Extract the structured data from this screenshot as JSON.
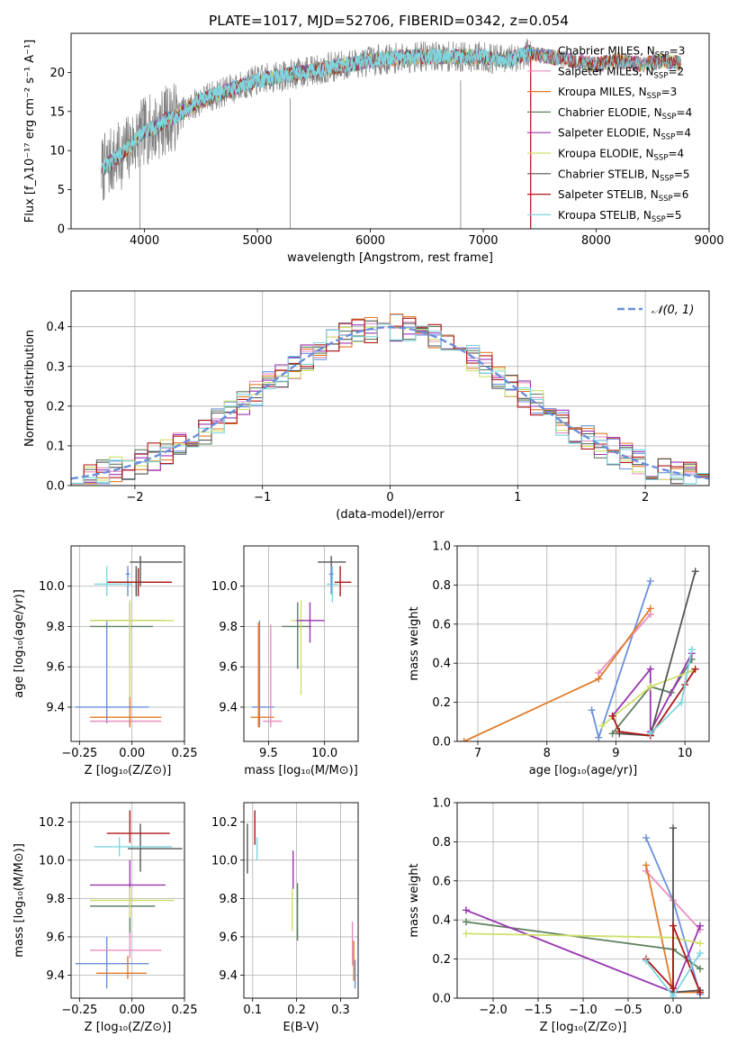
{
  "colors": {
    "chabrier_miles": "#6a8fdc",
    "salpeter_miles": "#e88fc0",
    "kroupa_miles": "#e07b2a",
    "chabrier_elodie": "#5f7f5f",
    "salpeter_elodie": "#9a35b0",
    "kroupa_elodie": "#cfe06a",
    "chabrier_stelib": "#555555",
    "salpeter_stelib": "#b01818",
    "kroupa_stelib": "#7fd6de",
    "spectrum": "#808080"
  },
  "chart_data": [
    {
      "id": "spectrum",
      "type": "line",
      "title": "PLATE=1017, MJD=52706, FIBERID=0342, z=0.054",
      "xlabel": "wavelength [Angstrom, rest frame]",
      "ylabel": "Flux [f_λ10⁻¹⁷ erg cm⁻² s⁻¹ A⁻¹]",
      "xlim": [
        3350,
        9000
      ],
      "ylim": [
        0,
        25
      ],
      "xticks": [
        "4000",
        "5000",
        "6000",
        "7000",
        "8000",
        "9000"
      ],
      "yticks": [
        "0",
        "5",
        "10",
        "15",
        "20"
      ],
      "legend_position": "right",
      "legend": [
        {
          "label": "Chabrier MILES, N",
          "sub": "SSP",
          "suffix": "=3",
          "color": "chabrier_miles"
        },
        {
          "label": "Salpeter MILES, N",
          "sub": "SSP",
          "suffix": "=2",
          "color": "salpeter_miles"
        },
        {
          "label": "Kroupa MILES, N",
          "sub": "SSP",
          "suffix": "=3",
          "color": "kroupa_miles"
        },
        {
          "label": "Chabrier ELODIE, N",
          "sub": "SSP",
          "suffix": "=4",
          "color": "chabrier_elodie"
        },
        {
          "label": "Salpeter ELODIE, N",
          "sub": "SSP",
          "suffix": "=4",
          "color": "salpeter_elodie"
        },
        {
          "label": "Kroupa ELODIE, N",
          "sub": "SSP",
          "suffix": "=4",
          "color": "kroupa_elodie"
        },
        {
          "label": "Chabrier STELIB, N",
          "sub": "SSP",
          "suffix": "=5",
          "color": "chabrier_stelib"
        },
        {
          "label": "Salpeter STELIB, N",
          "sub": "SSP",
          "suffix": "=6",
          "color": "salpeter_stelib"
        },
        {
          "label": "Kroupa STELIB, N",
          "sub": "SSP",
          "suffix": "=5",
          "color": "kroupa_stelib"
        }
      ],
      "continuum": {
        "x": [
          3620,
          3700,
          3800,
          3900,
          4000,
          4100,
          4200,
          4300,
          4400,
          4500,
          4600,
          4700,
          4800,
          4900,
          5000,
          5200,
          5400,
          5600,
          5800,
          6000,
          6200,
          6400,
          6600,
          6800,
          7000,
          7200,
          7400,
          7600,
          7800,
          8000,
          8200,
          8400,
          8600,
          8800
        ],
        "y": [
          7.5,
          8.5,
          9.5,
          11.0,
          12.5,
          13.0,
          14.0,
          14.5,
          15.5,
          16.5,
          17.0,
          17.5,
          18.0,
          18.5,
          19.0,
          19.5,
          20.0,
          20.5,
          21.0,
          21.5,
          21.8,
          22.0,
          22.0,
          22.0,
          22.0,
          21.5,
          22.5,
          22.0,
          21.5,
          21.0,
          21.5,
          21.0,
          21.5,
          21.0
        ]
      },
      "observed_end_wavelength": 7420,
      "model_end_wavelength": 8750,
      "flux_drop_wavelengths": [
        3960,
        5290,
        6800,
        7420
      ]
    },
    {
      "id": "residuals",
      "type": "histogram",
      "xlabel": "(data-model)/error",
      "ylabel": "Normed distribution",
      "xlim": [
        -2.5,
        2.5
      ],
      "ylim": [
        0,
        0.49
      ],
      "xticks": [
        "−2",
        "−1",
        "0",
        "1",
        "2"
      ],
      "yticks": [
        "0.0",
        "0.1",
        "0.2",
        "0.3",
        "0.4"
      ],
      "bin_width": 0.1,
      "legend_label": "𝒩(0, 1)",
      "legend_position": "top-right",
      "reference_curve": "standard normal pdf",
      "series_colors": [
        "chabrier_miles",
        "salpeter_miles",
        "kroupa_miles",
        "chabrier_elodie",
        "salpeter_elodie",
        "kroupa_elodie",
        "chabrier_stelib",
        "salpeter_stelib",
        "kroupa_stelib"
      ],
      "grid": true
    },
    {
      "id": "age_vs_Z",
      "type": "errorbar",
      "xlabel": "Z [log₁₀(Z/Z⊙)]",
      "ylabel": "age  [log₁₀(age/yr)]",
      "xlim": [
        -0.29,
        0.25
      ],
      "ylim": [
        9.23,
        10.2
      ],
      "xticks": [
        "−0.25",
        "0.00",
        "0.25"
      ],
      "yticks": [
        "9.4",
        "9.6",
        "9.8",
        "10.0"
      ],
      "grid": true,
      "points": [
        {
          "color": "chabrier_miles",
          "x": -0.12,
          "xlo": -0.27,
          "xhi": 0.08,
          "y": 9.4,
          "ylo": 9.32,
          "yhi": 9.83
        },
        {
          "color": "chabrier_miles",
          "x": -0.02,
          "xlo": -0.03,
          "xhi": -0.01,
          "y": 10.06,
          "ylo": 9.95,
          "yhi": 10.1
        },
        {
          "color": "salpeter_miles",
          "x": -0.01,
          "xlo": -0.2,
          "xhi": 0.14,
          "y": 9.33,
          "ylo": 9.3,
          "yhi": 9.51
        },
        {
          "color": "kroupa_miles",
          "x": -0.01,
          "xlo": -0.2,
          "xhi": 0.14,
          "y": 9.35,
          "ylo": 9.3,
          "yhi": 9.82
        },
        {
          "color": "kroupa_miles",
          "x": -0.01,
          "xlo": -0.2,
          "xhi": 0.16,
          "y": 9.83,
          "ylo": 9.81,
          "yhi": 9.85
        },
        {
          "color": "chabrier_elodie",
          "x": -0.01,
          "xlo": -0.2,
          "xhi": 0.1,
          "y": 9.8,
          "ylo": 9.6,
          "yhi": 9.92
        },
        {
          "color": "salpeter_elodie",
          "x": -0.01,
          "xlo": -0.2,
          "xhi": 0.16,
          "y": 9.83,
          "ylo": 9.75,
          "yhi": 9.92
        },
        {
          "color": "kroupa_elodie",
          "x": -0.01,
          "xlo": -0.2,
          "xhi": 0.2,
          "y": 9.83,
          "ylo": 9.45,
          "yhi": 9.93
        },
        {
          "color": "chabrier_stelib",
          "x": 0.02,
          "xlo": -0.12,
          "xhi": 0.18,
          "y": 10.02,
          "ylo": 9.95,
          "yhi": 10.1
        },
        {
          "color": "salpeter_stelib",
          "x": 0.03,
          "xlo": -0.12,
          "xhi": 0.19,
          "y": 10.02,
          "ylo": 9.95,
          "yhi": 10.09
        },
        {
          "color": "kroupa_stelib",
          "x": -0.12,
          "xlo": -0.18,
          "xhi": 0.0,
          "y": 10.01,
          "ylo": 9.95,
          "yhi": 10.1
        },
        {
          "color": "chabrier_stelib",
          "x": 0.04,
          "xlo": -0.01,
          "xhi": 0.24,
          "y": 10.12,
          "ylo": 10.0,
          "yhi": 10.15
        }
      ]
    },
    {
      "id": "age_vs_mass",
      "type": "errorbar",
      "xlabel": "mass [log₁₀(M/M⊙)]",
      "ylabel": "",
      "xlim": [
        9.28,
        10.3
      ],
      "ylim": [
        9.23,
        10.2
      ],
      "xticks": [
        "9.5",
        "10.0"
      ],
      "yticks": [
        "9.4",
        "9.6",
        "9.8",
        "10.0"
      ],
      "grid": true,
      "points": [
        {
          "color": "chabrier_miles",
          "x": 9.42,
          "xlo": 9.35,
          "xhi": 9.55,
          "y": 9.4,
          "ylo": 9.3,
          "yhi": 9.83
        },
        {
          "color": "kroupa_miles",
          "x": 9.41,
          "xlo": 9.34,
          "xhi": 9.55,
          "y": 9.35,
          "ylo": 9.3,
          "yhi": 9.82
        },
        {
          "color": "salpeter_miles",
          "x": 9.52,
          "xlo": 9.45,
          "xhi": 9.62,
          "y": 9.33,
          "ylo": 9.3,
          "yhi": 9.81
        },
        {
          "color": "chabrier_elodie",
          "x": 9.76,
          "xlo": 9.62,
          "xhi": 9.88,
          "y": 9.8,
          "ylo": 9.59,
          "yhi": 9.92
        },
        {
          "color": "kroupa_elodie",
          "x": 9.79,
          "xlo": 9.7,
          "xhi": 9.86,
          "y": 9.83,
          "ylo": 9.46,
          "yhi": 9.93
        },
        {
          "color": "salpeter_elodie",
          "x": 9.87,
          "xlo": 9.75,
          "xhi": 10.0,
          "y": 9.83,
          "ylo": 9.72,
          "yhi": 9.92
        },
        {
          "color": "chabrier_stelib",
          "x": 10.06,
          "xlo": 9.94,
          "xhi": 10.19,
          "y": 10.12,
          "ylo": 10.02,
          "yhi": 10.15
        },
        {
          "color": "salpeter_stelib",
          "x": 10.14,
          "xlo": 10.09,
          "xhi": 10.24,
          "y": 10.02,
          "ylo": 9.95,
          "yhi": 10.1
        },
        {
          "color": "kroupa_stelib",
          "x": 10.07,
          "xlo": 10.02,
          "xhi": 10.12,
          "y": 10.01,
          "ylo": 9.92,
          "yhi": 10.1
        },
        {
          "color": "chabrier_miles",
          "x": 10.06,
          "xlo": 10.04,
          "xhi": 10.08,
          "y": 10.06,
          "ylo": 9.96,
          "yhi": 10.1
        }
      ]
    },
    {
      "id": "massweight_vs_age",
      "type": "line",
      "xlabel": "age  [log₁₀(age/yr)]",
      "ylabel": "mass weight",
      "xlim": [
        6.7,
        10.35
      ],
      "ylim": [
        0,
        1.0
      ],
      "xticks": [
        "7",
        "8",
        "9",
        "10"
      ],
      "yticks": [
        "0.0",
        "0.2",
        "0.4",
        "0.6",
        "0.8",
        "1.0"
      ],
      "grid": true,
      "series": [
        {
          "color": "chabrier_miles",
          "x": [
            8.65,
            8.75,
            9.5
          ],
          "y": [
            0.16,
            0.02,
            0.82
          ]
        },
        {
          "color": "salpeter_miles",
          "x": [
            8.75,
            9.5
          ],
          "y": [
            0.35,
            0.65
          ]
        },
        {
          "color": "kroupa_miles",
          "x": [
            6.8,
            8.75,
            9.5
          ],
          "y": [
            0.0,
            0.32,
            0.68
          ]
        },
        {
          "color": "chabrier_elodie",
          "x": [
            8.95,
            9.5,
            9.8,
            10.1
          ],
          "y": [
            0.04,
            0.28,
            0.25,
            0.42
          ]
        },
        {
          "color": "salpeter_elodie",
          "x": [
            8.95,
            9.5,
            9.5,
            10.1
          ],
          "y": [
            0.13,
            0.37,
            0.05,
            0.45
          ]
        },
        {
          "color": "kroupa_elodie",
          "x": [
            8.8,
            9.5,
            10.1
          ],
          "y": [
            0.08,
            0.28,
            0.36
          ]
        },
        {
          "color": "chabrier_stelib",
          "x": [
            9.05,
            9.5,
            10.15
          ],
          "y": [
            0.04,
            0.03,
            0.87
          ]
        },
        {
          "color": "salpeter_stelib",
          "x": [
            8.95,
            9.05,
            9.5,
            10.0,
            10.15
          ],
          "y": [
            0.13,
            0.05,
            0.03,
            0.29,
            0.37
          ]
        },
        {
          "color": "kroupa_stelib",
          "x": [
            9.5,
            9.95,
            10.1
          ],
          "y": [
            0.04,
            0.2,
            0.47
          ]
        }
      ]
    },
    {
      "id": "mass_vs_Z",
      "type": "errorbar",
      "xlabel": "Z [log₁₀(Z/Z⊙)]",
      "ylabel": "mass [log₁₀(M/M⊙)]",
      "xlim": [
        -0.29,
        0.25
      ],
      "ylim": [
        9.28,
        10.3
      ],
      "xticks": [
        "−0.25",
        "0.00",
        "0.25"
      ],
      "yticks": [
        "9.4",
        "9.6",
        "9.8",
        "10.0",
        "10.2"
      ],
      "grid": true,
      "points": [
        {
          "color": "chabrier_miles",
          "x": -0.12,
          "xlo": -0.27,
          "xhi": 0.08,
          "y": 9.46,
          "ylo": 9.33,
          "yhi": 9.6
        },
        {
          "color": "salpeter_miles",
          "x": -0.01,
          "xlo": -0.2,
          "xhi": 0.14,
          "y": 9.53,
          "ylo": 9.49,
          "yhi": 9.62
        },
        {
          "color": "kroupa_miles",
          "x": -0.02,
          "xlo": -0.17,
          "xhi": 0.07,
          "y": 9.41,
          "ylo": 9.38,
          "yhi": 9.5
        },
        {
          "color": "chabrier_elodie",
          "x": -0.01,
          "xlo": -0.2,
          "xhi": 0.11,
          "y": 9.76,
          "ylo": 9.62,
          "yhi": 9.88
        },
        {
          "color": "salpeter_elodie",
          "x": -0.01,
          "xlo": -0.2,
          "xhi": 0.16,
          "y": 9.87,
          "ylo": 9.75,
          "yhi": 10.0
        },
        {
          "color": "kroupa_elodie",
          "x": -0.01,
          "xlo": -0.2,
          "xhi": 0.2,
          "y": 9.79,
          "ylo": 9.7,
          "yhi": 9.86
        },
        {
          "color": "chabrier_stelib",
          "x": 0.04,
          "xlo": -0.02,
          "xhi": 0.24,
          "y": 10.06,
          "ylo": 9.94,
          "yhi": 10.19
        },
        {
          "color": "salpeter_stelib",
          "x": -0.01,
          "xlo": -0.12,
          "xhi": 0.18,
          "y": 10.14,
          "ylo": 10.09,
          "yhi": 10.26
        },
        {
          "color": "kroupa_stelib",
          "x": -0.06,
          "xlo": -0.18,
          "xhi": 0.19,
          "y": 10.07,
          "ylo": 10.02,
          "yhi": 10.12
        }
      ]
    },
    {
      "id": "mass_vs_EBV",
      "type": "errorbar",
      "xlabel": "E(B-V)",
      "ylabel": "",
      "xlim": [
        0.08,
        0.34
      ],
      "ylim": [
        9.28,
        10.3
      ],
      "xticks": [
        "0.1",
        "0.2",
        "0.3"
      ],
      "yticks": [
        "9.4",
        "9.6",
        "9.8",
        "10.0",
        "10.2"
      ],
      "grid": true,
      "points": [
        {
          "color": "chabrier_stelib",
          "x": 0.088,
          "y": 10.06,
          "ylo": 9.93,
          "yhi": 10.19
        },
        {
          "color": "salpeter_stelib",
          "x": 0.105,
          "y": 10.14,
          "ylo": 10.08,
          "yhi": 10.26
        },
        {
          "color": "kroupa_stelib",
          "x": 0.11,
          "y": 10.07,
          "ylo": 10.0,
          "yhi": 10.12
        },
        {
          "color": "salpeter_elodie",
          "x": 0.192,
          "y": 9.98,
          "ylo": 9.85,
          "yhi": 10.05
        },
        {
          "color": "kroupa_elodie",
          "x": 0.19,
          "y": 9.79,
          "ylo": 9.63,
          "yhi": 9.85
        },
        {
          "color": "chabrier_elodie",
          "x": 0.202,
          "y": 9.76,
          "ylo": 9.58,
          "yhi": 9.88
        },
        {
          "color": "salpeter_miles",
          "x": 0.327,
          "y": 9.53,
          "ylo": 9.45,
          "yhi": 9.68
        },
        {
          "color": "kroupa_miles",
          "x": 0.33,
          "y": 9.45,
          "ylo": 9.37,
          "yhi": 9.58
        },
        {
          "color": "chabrier_miles",
          "x": 0.333,
          "y": 9.4,
          "ylo": 9.33,
          "yhi": 9.48
        }
      ]
    },
    {
      "id": "massweight_vs_Z",
      "type": "line",
      "xlabel": "Z [log₁₀(Z/Z⊙)]",
      "ylabel": "mass weight",
      "xlim": [
        -2.4,
        0.4
      ],
      "ylim": [
        0,
        1.0
      ],
      "xticks": [
        "−2.0",
        "−1.5",
        "−1.0",
        "−0.5",
        "0.0"
      ],
      "yticks": [
        "0.0",
        "0.2",
        "0.4",
        "0.6",
        "0.8",
        "1.0"
      ],
      "grid": true,
      "series": [
        {
          "color": "chabrier_miles",
          "x": [
            -0.3,
            0.0,
            0.3
          ],
          "y": [
            0.82,
            0.5,
            0.02
          ]
        },
        {
          "color": "salpeter_miles",
          "x": [
            -0.3,
            0.0,
            0.3
          ],
          "y": [
            0.65,
            0.5,
            0.35
          ]
        },
        {
          "color": "kroupa_miles",
          "x": [
            -0.3,
            0.0,
            0.3
          ],
          "y": [
            0.68,
            0.03,
            0.03
          ]
        },
        {
          "color": "chabrier_elodie",
          "x": [
            -2.3,
            0.0,
            0.3
          ],
          "y": [
            0.39,
            0.25,
            0.15
          ]
        },
        {
          "color": "salpeter_elodie",
          "x": [
            -2.3,
            0.0,
            0.3
          ],
          "y": [
            0.45,
            0.03,
            0.37
          ]
        },
        {
          "color": "kroupa_elodie",
          "x": [
            -2.3,
            0.0,
            0.3
          ],
          "y": [
            0.33,
            0.31,
            0.28
          ]
        },
        {
          "color": "chabrier_stelib",
          "x": [
            0.0,
            0.0,
            0.3
          ],
          "y": [
            0.87,
            0.03,
            0.04
          ]
        },
        {
          "color": "salpeter_stelib",
          "x": [
            -0.3,
            0.0,
            0.0,
            0.3
          ],
          "y": [
            0.2,
            0.05,
            0.37,
            0.03
          ]
        },
        {
          "color": "kroupa_stelib",
          "x": [
            -0.3,
            0.0,
            0.3
          ],
          "y": [
            0.19,
            0.01,
            0.23
          ]
        }
      ]
    }
  ]
}
